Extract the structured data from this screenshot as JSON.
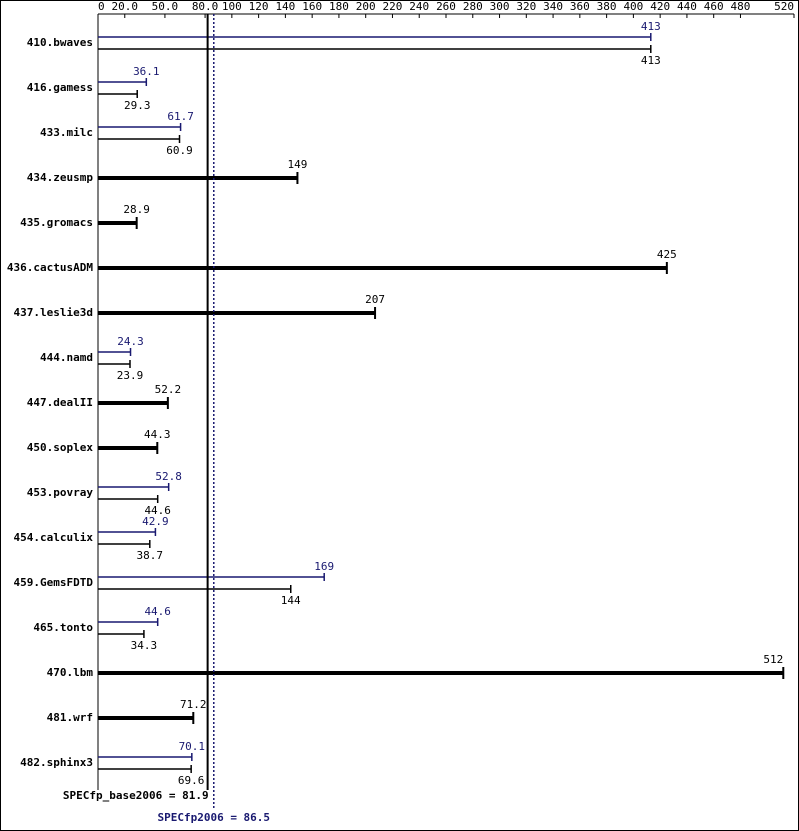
{
  "chart_data": {
    "type": "bar",
    "orientation": "horizontal",
    "categories": [
      "410.bwaves",
      "416.gamess",
      "433.milc",
      "434.zeusmp",
      "435.gromacs",
      "436.cactusADM",
      "437.leslie3d",
      "444.namd",
      "447.dealII",
      "450.soplex",
      "453.povray",
      "454.calculix",
      "459.GemsFDTD",
      "465.tonto",
      "470.lbm",
      "481.wrf",
      "482.sphinx3"
    ],
    "series": [
      {
        "color": "#191970",
        "values": [
          413,
          36.1,
          61.7,
          null,
          null,
          null,
          null,
          24.3,
          null,
          null,
          52.8,
          42.9,
          169,
          44.6,
          null,
          null,
          70.1
        ]
      },
      {
        "color": "#000000",
        "values": [
          413,
          29.3,
          60.9,
          149,
          28.9,
          425,
          207,
          23.9,
          52.2,
          44.3,
          44.6,
          38.7,
          144,
          34.3,
          512,
          71.2,
          69.6
        ]
      }
    ],
    "xlim": [
      0,
      520
    ],
    "xticks": [
      0,
      {
        "value": 20,
        "label": "20.0"
      },
      {
        "value": 50,
        "label": "50.0"
      },
      {
        "value": 80,
        "label": "80.0"
      },
      100,
      120,
      140,
      160,
      180,
      200,
      220,
      240,
      260,
      280,
      300,
      320,
      340,
      360,
      380,
      400,
      420,
      440,
      460,
      480,
      520
    ],
    "reference_lines": [
      {
        "label": "SPECfp_base2006 = 81.9",
        "value": 81.9,
        "color": "#000000",
        "style": "solid"
      },
      {
        "label": "SPECfp2006 = 86.5",
        "value": 86.5,
        "color": "#191970",
        "style": "dotted"
      }
    ]
  }
}
